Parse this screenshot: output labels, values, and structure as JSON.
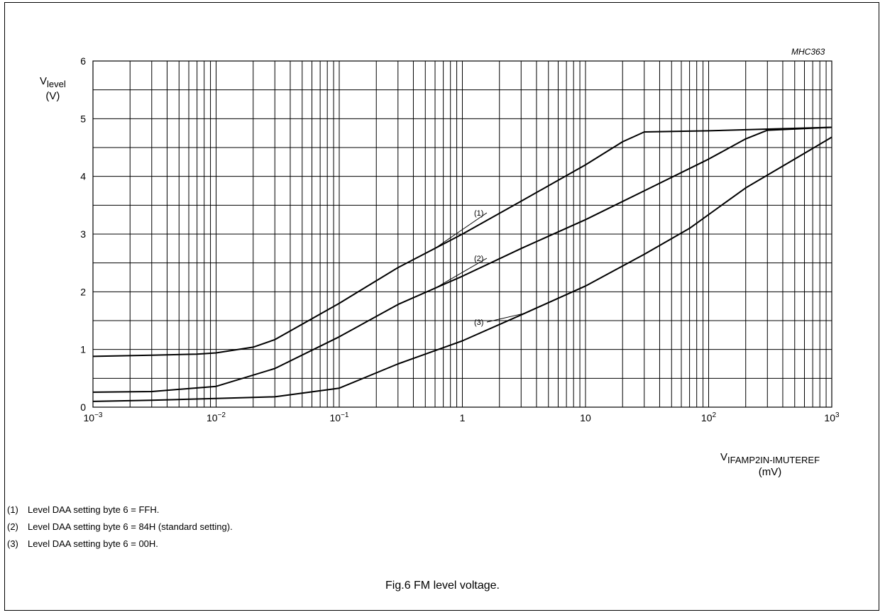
{
  "chart_data": {
    "type": "line",
    "code": "MHC363",
    "ylabel_main": "V",
    "ylabel_sub": "level",
    "ylabel_unit": "(V)",
    "xlabel_main": "V",
    "xlabel_sub": "IFAMP2IN-IMUTEREF",
    "xlabel_unit": "(mV)",
    "x_scale": "log",
    "xlim": [
      0.001,
      1000
    ],
    "ylim": [
      0,
      6
    ],
    "grid": true,
    "y_ticks": [
      "0",
      "1",
      "2",
      "3",
      "4",
      "5",
      "6"
    ],
    "x_ticks": [
      {
        "base": "10",
        "exp": "−3"
      },
      {
        "base": "10",
        "exp": "−2"
      },
      {
        "base": "10",
        "exp": "−1"
      },
      {
        "base": "1",
        "exp": ""
      },
      {
        "base": "10",
        "exp": ""
      },
      {
        "base": "10",
        "exp": "2"
      },
      {
        "base": "10",
        "exp": "3"
      }
    ],
    "series": [
      {
        "name": "(1)",
        "x": [
          0.001,
          0.003,
          0.007,
          0.01,
          0.02,
          0.03,
          0.1,
          0.3,
          1,
          3,
          10,
          20,
          30,
          100,
          300,
          1000
        ],
        "y": [
          0.88,
          0.9,
          0.92,
          0.94,
          1.04,
          1.17,
          1.8,
          2.42,
          3.0,
          3.57,
          4.2,
          4.6,
          4.77,
          4.79,
          4.82,
          4.85
        ]
      },
      {
        "name": "(2)",
        "x": [
          0.001,
          0.003,
          0.01,
          0.03,
          0.1,
          0.3,
          1,
          3,
          10,
          30,
          100,
          200,
          300,
          1000
        ],
        "y": [
          0.26,
          0.27,
          0.36,
          0.67,
          1.22,
          1.78,
          2.27,
          2.75,
          3.25,
          3.75,
          4.3,
          4.65,
          4.8,
          4.85
        ]
      },
      {
        "name": "(3)",
        "x": [
          0.001,
          0.003,
          0.01,
          0.03,
          0.1,
          0.3,
          1,
          3,
          10,
          30,
          70,
          200,
          1000
        ],
        "y": [
          0.1,
          0.12,
          0.15,
          0.18,
          0.33,
          0.75,
          1.15,
          1.6,
          2.1,
          2.65,
          3.1,
          3.8,
          4.68
        ]
      }
    ]
  },
  "notes": [
    {
      "num": "(1)",
      "text": "Level DAA setting byte 6 = FFH."
    },
    {
      "num": "(2)",
      "text": "Level DAA setting byte 6 = 84H (standard setting)."
    },
    {
      "num": "(3)",
      "text": "Level DAA setting byte 6 = 00H."
    }
  ],
  "caption": "Fig.6  FM level voltage."
}
